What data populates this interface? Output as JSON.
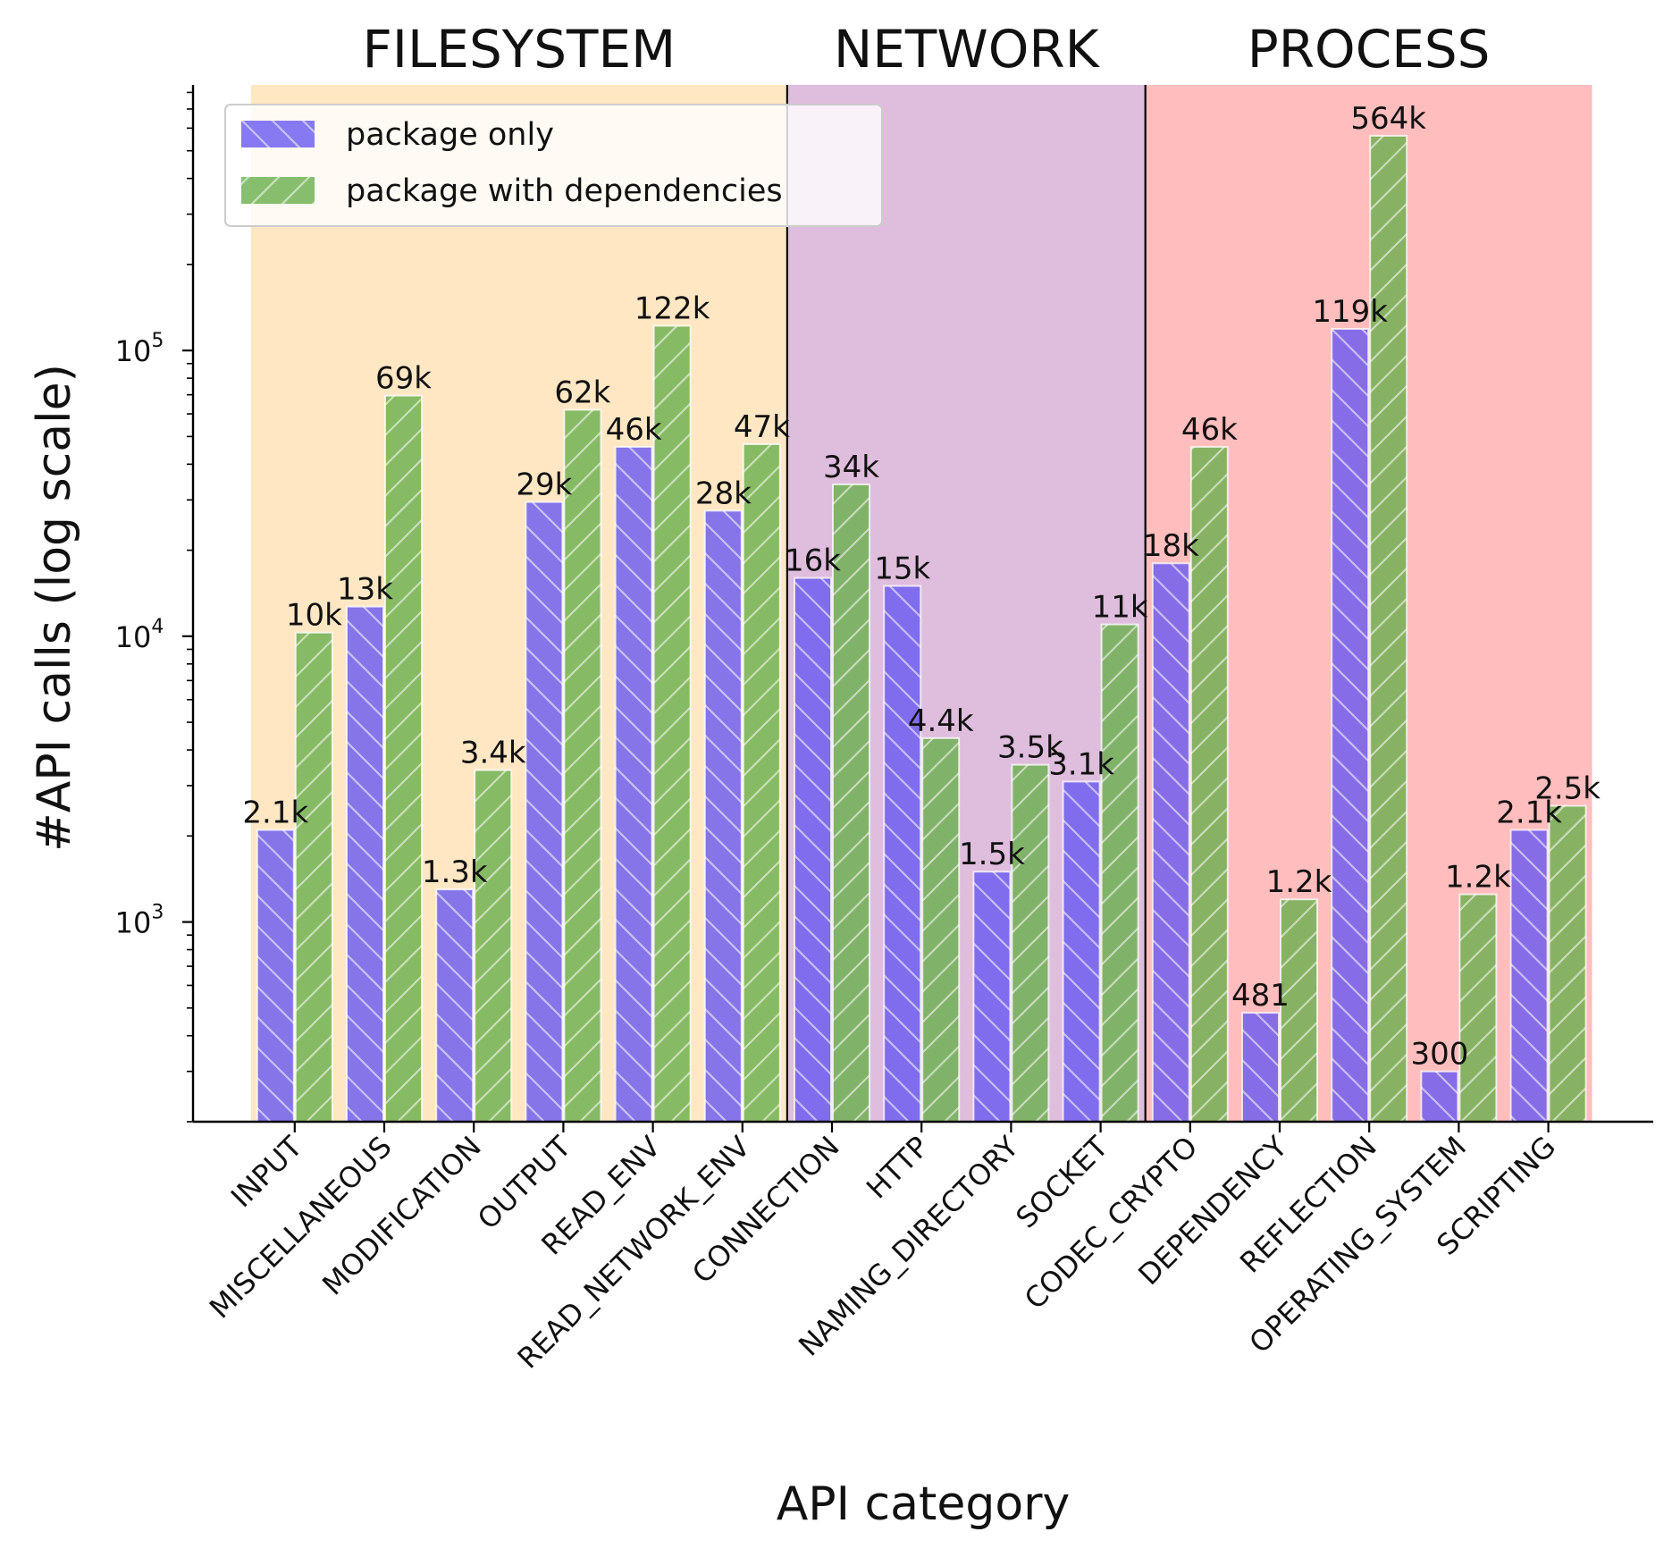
{
  "chart_data": {
    "type": "bar",
    "scale": "log",
    "xlabel": "API category",
    "ylabel": "#API calls (log scale)",
    "ylim": [
      200,
      850000
    ],
    "yticks": [
      {
        "value": 1000,
        "base": "10",
        "exp": "3"
      },
      {
        "value": 10000,
        "base": "10",
        "exp": "4"
      },
      {
        "value": 100000,
        "base": "10",
        "exp": "5"
      }
    ],
    "categories": [
      "INPUT",
      "MISCELLANEOUS",
      "MODIFICATION",
      "OUTPUT",
      "READ_ENV",
      "READ_NETWORK_ENV",
      "CONNECTION",
      "HTTP",
      "NAMING_DIRECTORY",
      "SOCKET",
      "CODEC_CRYPTO",
      "DEPENDENCY",
      "REFLECTION",
      "OPERATING_SYSTEM",
      "SCRIPTING"
    ],
    "groups": [
      {
        "name": "FILESYSTEM",
        "start": 0,
        "end": 5,
        "color": "#ffe7c4"
      },
      {
        "name": "NETWORK",
        "start": 6,
        "end": 9,
        "color": "#dfbddd"
      },
      {
        "name": "PROCESS",
        "start": 10,
        "end": 14,
        "color": "#ffbdbd"
      }
    ],
    "series": [
      {
        "name": "package only",
        "color": "#6b5cf0",
        "hatch": "backslash",
        "values": [
          2100,
          12700,
          1300,
          29500,
          46000,
          27500,
          16000,
          15000,
          1500,
          3100,
          18000,
          481,
          119000,
          300,
          2100
        ],
        "labels": [
          "2.1k",
          "13k",
          "1.3k",
          "29k",
          "46k",
          "28k",
          "16k",
          "15k",
          "1.5k",
          "3.1k",
          "18k",
          "481",
          "119k",
          "300",
          "2.1k"
        ]
      },
      {
        "name": "package with dependencies",
        "color": "#6db04f",
        "hatch": "slash",
        "values": [
          10300,
          69500,
          3400,
          62000,
          122000,
          47000,
          34000,
          4400,
          3550,
          11000,
          46000,
          1200,
          564000,
          1250,
          2550
        ],
        "labels": [
          "10k",
          "69k",
          "3.4k",
          "62k",
          "122k",
          "47k",
          "34k",
          "4.4k",
          "3.5k",
          "11k",
          "46k",
          "1.2k",
          "564k",
          "1.2k",
          "2.5k"
        ]
      }
    ],
    "legend": {
      "position": "top-left"
    }
  }
}
